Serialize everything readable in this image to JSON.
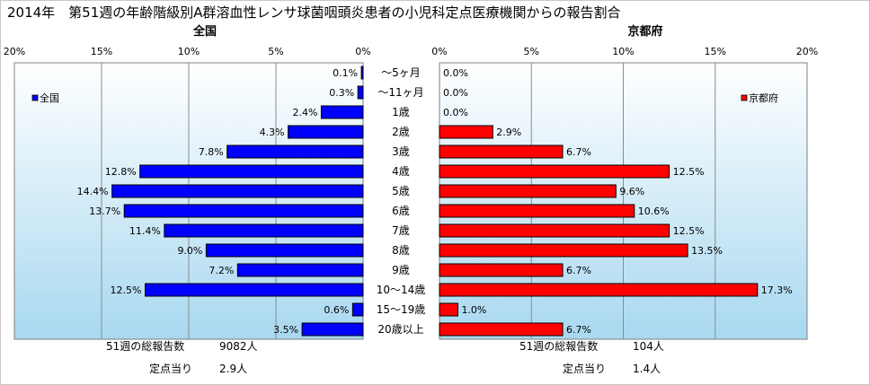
{
  "title": "2014年　第51週の年齢階級別A群溶血性レンサ球菌咽頭炎患者の小児科定点医療機関からの報告割合",
  "colors": {
    "national_bar": "#0000ff",
    "kyoto_bar": "#ff0000",
    "bar_edge": "#000000",
    "plot_gradient_top": "#ffffff",
    "plot_gradient_bottom": "#a8d8f0",
    "gridline": "#8c8c8c"
  },
  "chart_data": {
    "type": "bar",
    "orientation": "horizontal",
    "categories": [
      "～5ヶ月",
      "～11ヶ月",
      "1歳",
      "2歳",
      "3歳",
      "4歳",
      "5歳",
      "6歳",
      "7歳",
      "8歳",
      "9歳",
      "10～14歳",
      "15～19歳",
      "20歳以上"
    ],
    "panels": [
      {
        "title": "全国",
        "legend": "全国",
        "legend_position": "top-left",
        "direction": "leftward",
        "xlim": [
          0,
          20
        ],
        "ticks": [
          20,
          15,
          10,
          5,
          0
        ],
        "tick_labels": [
          "20%",
          "15%",
          "10%",
          "5%",
          "0%"
        ],
        "values": [
          0.1,
          0.3,
          2.4,
          4.3,
          7.8,
          12.8,
          14.4,
          13.7,
          11.4,
          9.0,
          7.2,
          12.5,
          0.6,
          3.5
        ],
        "value_labels": [
          "0.1%",
          "0.3%",
          "2.4%",
          "4.3%",
          "7.8%",
          "12.8%",
          "14.4%",
          "13.7%",
          "11.4%",
          "9.0%",
          "7.2%",
          "12.5%",
          "0.6%",
          "3.5%"
        ],
        "footer": [
          {
            "label": "51週の総報告数",
            "value": "9082人"
          },
          {
            "label": "定点当り",
            "value": "2.9人"
          }
        ]
      },
      {
        "title": "京都府",
        "legend": "京都府",
        "legend_position": "top-right",
        "direction": "rightward",
        "xlim": [
          0,
          20
        ],
        "ticks": [
          0,
          5,
          10,
          15,
          20
        ],
        "tick_labels": [
          "0%",
          "5%",
          "10%",
          "15%",
          "20%"
        ],
        "values": [
          0.0,
          0.0,
          0.0,
          2.9,
          6.7,
          12.5,
          9.6,
          10.6,
          12.5,
          13.5,
          6.7,
          17.3,
          1.0,
          6.7
        ],
        "value_labels": [
          "0.0%",
          "0.0%",
          "0.0%",
          "2.9%",
          "6.7%",
          "12.5%",
          "9.6%",
          "10.6%",
          "12.5%",
          "13.5%",
          "6.7%",
          "17.3%",
          "1.0%",
          "6.7%"
        ],
        "footer": [
          {
            "label": "51週の総報告数",
            "value": "104人"
          },
          {
            "label": "定点当り",
            "value": "1.4人"
          }
        ]
      }
    ]
  }
}
